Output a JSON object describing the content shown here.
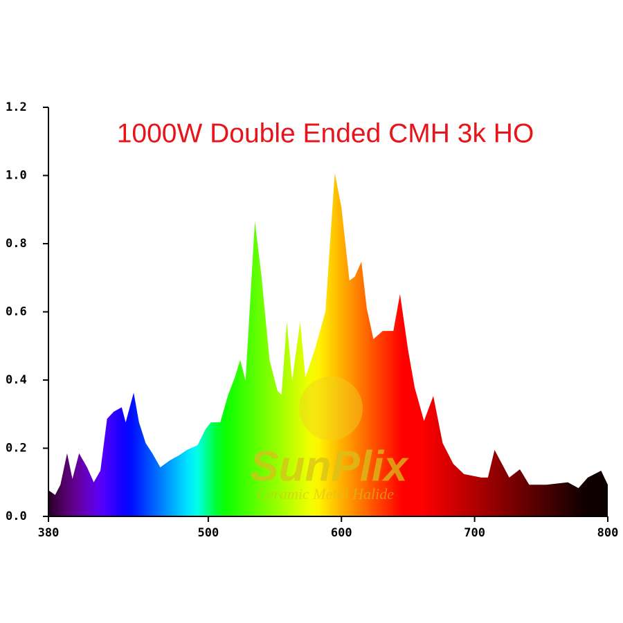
{
  "chart_data": {
    "type": "area",
    "title": "1000W Double Ended CMH 3k HO",
    "title_color": "#e8141a",
    "watermark": {
      "brand": "SunPlix",
      "tagline": "Ceramic Metal Halide"
    },
    "x": [
      380,
      385,
      389,
      394,
      398,
      403,
      409,
      414,
      419,
      424,
      429,
      435,
      438,
      444,
      448,
      453,
      458,
      464,
      471,
      478,
      484,
      492,
      498,
      502,
      509,
      515,
      520,
      524,
      528,
      535,
      540,
      546,
      552,
      555,
      559,
      563,
      569,
      573,
      580,
      588,
      595,
      600,
      606,
      610,
      615,
      619,
      624,
      631,
      639,
      644,
      650,
      655,
      662,
      669,
      676,
      684,
      692,
      705,
      710,
      715,
      720,
      726,
      734,
      741,
      754,
      770,
      778,
      785,
      795,
      800
    ],
    "values": [
      0.077,
      0.063,
      0.093,
      0.185,
      0.11,
      0.185,
      0.144,
      0.1,
      0.134,
      0.286,
      0.307,
      0.32,
      0.276,
      0.363,
      0.276,
      0.215,
      0.185,
      0.144,
      0.164,
      0.179,
      0.195,
      0.209,
      0.256,
      0.276,
      0.276,
      0.357,
      0.408,
      0.459,
      0.398,
      0.865,
      0.703,
      0.459,
      0.368,
      0.357,
      0.571,
      0.398,
      0.571,
      0.408,
      0.489,
      0.601,
      1.007,
      0.906,
      0.692,
      0.703,
      0.747,
      0.611,
      0.52,
      0.544,
      0.544,
      0.652,
      0.489,
      0.378,
      0.28,
      0.353,
      0.215,
      0.154,
      0.124,
      0.114,
      0.114,
      0.195,
      0.158,
      0.114,
      0.138,
      0.093,
      0.093,
      0.1,
      0.083,
      0.114,
      0.134,
      0.093
    ],
    "xlim": [
      380,
      800
    ],
    "xticks": [
      380,
      500,
      600,
      700,
      800
    ],
    "ylim": [
      0,
      1.2
    ],
    "yticks": [
      {
        "value": 0,
        "label": "0.0"
      },
      0.2,
      0.4,
      0.6,
      0.8,
      {
        "value": 1,
        "label": "1.0"
      },
      1.2
    ]
  }
}
